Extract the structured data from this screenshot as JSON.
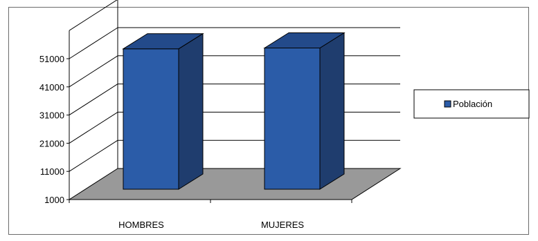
{
  "chart_data": {
    "type": "bar",
    "categories": [
      "HOMBRES",
      "MUJERES"
    ],
    "series": [
      {
        "name": "Población",
        "values": [
          54500,
          54800
        ]
      }
    ],
    "yticks": [
      1000,
      11000,
      21000,
      31000,
      41000,
      51000
    ],
    "ylim": [
      1000,
      61000
    ],
    "grid": true,
    "legend_position": "right",
    "colors": {
      "bar_front": "#2b5ca8",
      "bar_side": "#1f3d6e",
      "bar_top": "#234a8a",
      "floor": "#999999",
      "grid": "#000000"
    }
  }
}
